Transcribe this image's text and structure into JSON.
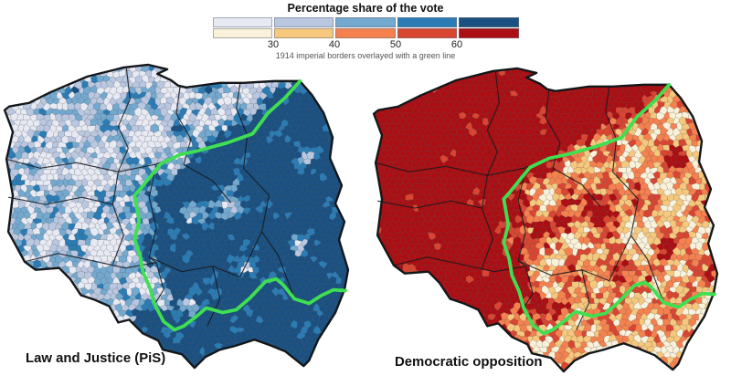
{
  "header": {
    "title": "Percentage share of the vote",
    "subtitle": "1914 imperial borders overlayed with a green line"
  },
  "legend": {
    "ticks": [
      "30",
      "40",
      "50",
      "60"
    ],
    "class_breaks": [
      30,
      40,
      50,
      60
    ],
    "palette_pis": [
      "#e7e9f3",
      "#b9c7e0",
      "#74a9cf",
      "#2b7cb5",
      "#1a5182"
    ],
    "palette_opposition": [
      "#f9f1d9",
      "#f6c87d",
      "#f5814f",
      "#d84632",
      "#ab0e13"
    ]
  },
  "maps": [
    {
      "id": "pis",
      "label": "Law and Justice (PiS)",
      "palette": "palette_pis",
      "high_region": "east"
    },
    {
      "id": "opposition",
      "label": "Democratic opposition",
      "palette": "palette_opposition",
      "high_region": "west"
    }
  ],
  "colors": {
    "imperial_border_line": "#3fdf51",
    "country_outline": "#14171a",
    "background": "#ffffff"
  }
}
